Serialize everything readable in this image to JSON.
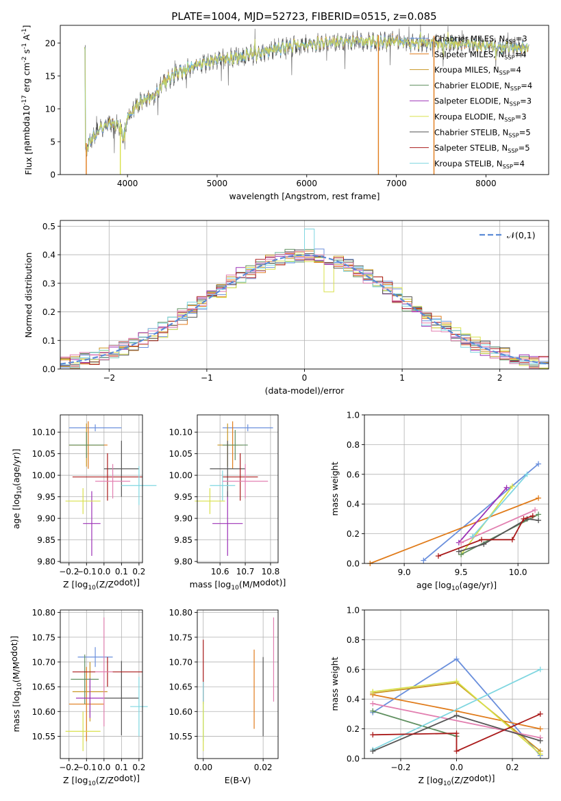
{
  "figure_title": "PLATE=1004, MJD=52723, FIBERID=0515, z=0.085",
  "colors": {
    "Chabrier MILES": "#6a8fdc",
    "Salpeter MILES": "#e07b1a",
    "Kroupa MILES": "#c89622",
    "Chabrier ELODIE": "#5f8f5f",
    "Salpeter ELODIE": "#9b30b6",
    "Kroupa ELODIE": "#d8e04a",
    "Chabrier STELIB": "#555555",
    "Salpeter STELIB": "#aa1a1a",
    "Kroupa STELIB": "#7fd6e0",
    "extra_pink": "#e27fb0",
    "extra_green": "#7fb87f",
    "normal_curve": "#5b8ad6"
  },
  "chart_data": [
    {
      "id": "spectrum",
      "type": "line",
      "xlabel": "wavelength [Angstrom, rest frame]",
      "ylabel": "Flux [f$_\\lambda$10$^{-17}$ erg cm$^{-2}$ s$^{-1}$ A$^{-1}$]",
      "xlim": [
        3250,
        8700
      ],
      "ylim": [
        0,
        22.7
      ],
      "xticks": [
        4000,
        5000,
        6000,
        7000,
        8000
      ],
      "yticks": [
        0,
        5,
        10,
        15,
        20
      ],
      "grid": false,
      "legend_position": "top-right",
      "legend": [
        "Chabrier MILES, N$_{SSP}$=3",
        "Salpeter MILES, N$_{SSP}$=4",
        "Kroupa MILES, N$_{SSP}$=4",
        "Chabrier ELODIE, N$_{SSP}$=4",
        "Salpeter ELODIE, N$_{SSP}$=3",
        "Kroupa ELODIE, N$_{SSP}$=3",
        "Chabrier STELIB, N$_{SSP}$=5",
        "Salpeter STELIB, N$_{SSP}$=5",
        "Kroupa STELIB, N$_{SSP}$=4"
      ],
      "continuum_points": [
        [
          3530,
          3.5
        ],
        [
          3600,
          5.5
        ],
        [
          3700,
          7.0
        ],
        [
          3800,
          8.0
        ],
        [
          3900,
          7.5
        ],
        [
          3950,
          6.0
        ],
        [
          4000,
          8.5
        ],
        [
          4100,
          10.5
        ],
        [
          4200,
          11.5
        ],
        [
          4300,
          12.0
        ],
        [
          4400,
          14.0
        ],
        [
          4600,
          15.8
        ],
        [
          4800,
          16.8
        ],
        [
          5000,
          17.5
        ],
        [
          5200,
          17.8
        ],
        [
          5400,
          18.2
        ],
        [
          5600,
          19.0
        ],
        [
          5800,
          19.5
        ],
        [
          6000,
          19.8
        ],
        [
          6200,
          20.0
        ],
        [
          6400,
          20.2
        ],
        [
          6600,
          20.3
        ],
        [
          6800,
          20.2
        ],
        [
          7000,
          20.3
        ],
        [
          7200,
          20.1
        ],
        [
          7400,
          20.1
        ],
        [
          7600,
          20.0
        ],
        [
          7800,
          19.8
        ],
        [
          8000,
          19.6
        ],
        [
          8200,
          19.4
        ],
        [
          8400,
          19.3
        ],
        [
          8470,
          19.3
        ]
      ],
      "data_range": [
        3520,
        8480
      ],
      "dips_to_zero": [
        [
          3540,
          "#e07b1a"
        ],
        [
          3920,
          "#d8e04a"
        ],
        [
          6800,
          "#e07b1a"
        ],
        [
          7420,
          "#e07b1a"
        ]
      ]
    },
    {
      "id": "residuals",
      "type": "histogram",
      "xlabel": "(data-model)/error",
      "ylabel": "Normed distribution",
      "xlim": [
        -2.5,
        2.5
      ],
      "ylim": [
        0,
        0.52
      ],
      "xticks": [
        -2,
        -1,
        0,
        1,
        2
      ],
      "yticks": [
        0.0,
        0.1,
        0.2,
        0.3,
        0.4,
        0.5
      ],
      "grid": true,
      "legend_position": "top-right",
      "legend": [
        "$\\mathcal{N}(0,1)$"
      ],
      "bin_width": 0.1,
      "series_names": [
        "Chabrier MILES",
        "Salpeter MILES",
        "Kroupa MILES",
        "Chabrier ELODIE",
        "Salpeter ELODIE",
        "Kroupa ELODIE",
        "Chabrier STELIB",
        "Salpeter STELIB",
        "Kroupa STELIB",
        "extra_pink"
      ]
    },
    {
      "id": "age_vs_Z",
      "type": "errorbar",
      "xlabel": "Z [log$_{10}$(Z/Z$_\\odot$)]",
      "ylabel": "age  [log$_{10}$(age/yr)]",
      "xlim": [
        -0.25,
        0.22
      ],
      "ylim": [
        9.797,
        10.14
      ],
      "xticks": [
        -0.2,
        -0.1,
        0.0,
        0.1,
        0.2
      ],
      "yticks": [
        9.8,
        9.85,
        9.9,
        9.95,
        10.0,
        10.05,
        10.1
      ],
      "grid": true,
      "points": [
        {
          "series": "Chabrier MILES",
          "x": -0.05,
          "xerr": 0.15,
          "y": 10.11,
          "yerr": 0.008
        },
        {
          "series": "Salpeter MILES",
          "x": -0.09,
          "xerr": 0.11,
          "y": 10.07,
          "yerr": 0.055
        },
        {
          "series": "Kroupa MILES",
          "x": -0.1,
          "xerr": 0.1,
          "y": 10.07,
          "yerr": 0.05
        },
        {
          "series": "Chabrier ELODIE",
          "x": -0.1,
          "xerr": 0.1,
          "y": 10.07,
          "yerr": 0.03
        },
        {
          "series": "Salpeter ELODIE",
          "x": -0.07,
          "xerr": 0.05,
          "y": 9.888,
          "yerr": 0.075
        },
        {
          "series": "Kroupa ELODIE",
          "x": -0.12,
          "xerr": 0.1,
          "y": 9.94,
          "yerr": 0.03
        },
        {
          "series": "Chabrier STELIB",
          "x": 0.1,
          "xerr": 0.1,
          "y": 10.015,
          "yerr": 0.065
        },
        {
          "series": "Salpeter STELIB",
          "x": 0.02,
          "xerr": 0.2,
          "y": 9.996,
          "yerr": 0.055
        },
        {
          "series": "Kroupa STELIB",
          "x": 0.2,
          "xerr": 0.1,
          "y": 9.976,
          "yerr": 0.045
        },
        {
          "series": "extra_pink",
          "x": 0.05,
          "xerr": 0.1,
          "y": 9.986,
          "yerr": 0.04
        }
      ]
    },
    {
      "id": "age_vs_mass",
      "type": "errorbar",
      "xlabel": "mass [log$_{10}$(M/M$_\\odot$)]",
      "ylabel": "",
      "xlim": [
        10.51,
        10.83
      ],
      "ylim": [
        9.797,
        10.14
      ],
      "xticks": [
        10.6,
        10.7,
        10.8
      ],
      "yticks": [
        9.8,
        9.85,
        9.9,
        9.95,
        10.0,
        10.05,
        10.1
      ],
      "grid": true,
      "points": [
        {
          "series": "Chabrier MILES",
          "x": 10.71,
          "xerr": 0.1,
          "y": 10.11,
          "yerr": 0.008
        },
        {
          "series": "Salpeter MILES",
          "x": 10.65,
          "xerr": 0.04,
          "y": 10.07,
          "yerr": 0.055
        },
        {
          "series": "Kroupa MILES",
          "x": 10.63,
          "xerr": 0.04,
          "y": 10.07,
          "yerr": 0.05
        },
        {
          "series": "Chabrier ELODIE",
          "x": 10.66,
          "xerr": 0.05,
          "y": 10.07,
          "yerr": 0.035
        },
        {
          "series": "Salpeter ELODIE",
          "x": 10.63,
          "xerr": 0.06,
          "y": 9.888,
          "yerr": 0.075
        },
        {
          "series": "Kroupa ELODIE",
          "x": 10.56,
          "xerr": 0.06,
          "y": 9.94,
          "yerr": 0.03
        },
        {
          "series": "Chabrier STELIB",
          "x": 10.63,
          "xerr": 0.07,
          "y": 10.015,
          "yerr": 0.065
        },
        {
          "series": "Salpeter STELIB",
          "x": 10.68,
          "xerr": 0.07,
          "y": 9.996,
          "yerr": 0.055
        },
        {
          "series": "Kroupa STELIB",
          "x": 10.61,
          "xerr": 0.05,
          "y": 9.976,
          "yerr": 0.035
        },
        {
          "series": "extra_pink",
          "x": 10.7,
          "xerr": 0.09,
          "y": 9.986,
          "yerr": 0.04
        }
      ]
    },
    {
      "id": "weight_vs_age",
      "type": "line",
      "xlabel": "age  [log$_{10}$(age/yr)]",
      "ylabel": "mass weight",
      "xlim": [
        8.65,
        10.27
      ],
      "ylim": [
        0,
        1.0
      ],
      "xticks": [
        9.0,
        9.5,
        10.0
      ],
      "yticks": [
        0.0,
        0.2,
        0.4,
        0.6,
        0.8,
        1.0
      ],
      "grid": true,
      "series": [
        {
          "name": "Chabrier MILES",
          "x": [
            9.17,
            10.18
          ],
          "y": [
            0.02,
            0.67
          ]
        },
        {
          "name": "Salpeter MILES",
          "x": [
            8.7,
            10.18
          ],
          "y": [
            0.0,
            0.44
          ]
        },
        {
          "name": "Kroupa ELODIE",
          "x": [
            9.5,
            9.95
          ],
          "y": [
            0.06,
            0.52
          ]
        },
        {
          "name": "Salpeter ELODIE",
          "x": [
            9.48,
            9.9
          ],
          "y": [
            0.14,
            0.51
          ]
        },
        {
          "name": "extra_pink",
          "x": [
            9.5,
            10.15
          ],
          "y": [
            0.14,
            0.36
          ]
        },
        {
          "name": "Kroupa STELIB",
          "x": [
            9.6,
            10.08
          ],
          "y": [
            0.18,
            0.6
          ]
        },
        {
          "name": "Chabrier ELODIE",
          "x": [
            9.5,
            10.18
          ],
          "y": [
            0.06,
            0.33
          ]
        },
        {
          "name": "Chabrier STELIB",
          "x": [
            9.48,
            9.7,
            10.08,
            10.18
          ],
          "y": [
            0.08,
            0.13,
            0.3,
            0.29
          ]
        },
        {
          "name": "Salpeter STELIB",
          "x": [
            9.3,
            9.68,
            9.95,
            10.05,
            10.13
          ],
          "y": [
            0.05,
            0.16,
            0.16,
            0.3,
            0.32
          ]
        }
      ]
    },
    {
      "id": "mass_vs_Z",
      "type": "errorbar",
      "xlabel": "Z [log$_{10}$(Z/Z$_\\odot$)]",
      "ylabel": "mass [log$_{10}$(M/M$_\\odot$)]",
      "xlim": [
        -0.25,
        0.22
      ],
      "ylim": [
        10.505,
        10.805
      ],
      "xticks": [
        -0.2,
        -0.1,
        0.0,
        0.1,
        0.2
      ],
      "yticks": [
        10.55,
        10.6,
        10.65,
        10.7,
        10.75,
        10.8
      ],
      "grid": true,
      "points": [
        {
          "series": "Chabrier MILES",
          "x": -0.05,
          "xerr": 0.1,
          "y": 10.71,
          "yerr": 0.02
        },
        {
          "series": "Salpeter MILES",
          "x": -0.1,
          "xerr": 0.1,
          "y": 10.615,
          "yerr": 0.075
        },
        {
          "series": "Kroupa MILES",
          "x": -0.08,
          "xerr": 0.1,
          "y": 10.64,
          "yerr": 0.06
        },
        {
          "series": "Chabrier ELODIE",
          "x": -0.11,
          "xerr": 0.08,
          "y": 10.665,
          "yerr": 0.05
        },
        {
          "series": "Salpeter ELODIE",
          "x": -0.08,
          "xerr": 0.08,
          "y": 10.627,
          "yerr": 0.04
        },
        {
          "series": "Kroupa ELODIE",
          "x": -0.12,
          "xerr": 0.1,
          "y": 10.56,
          "yerr": 0.04
        },
        {
          "series": "Chabrier STELIB",
          "x": 0.1,
          "xerr": 0.1,
          "y": 10.627,
          "yerr": 0.075
        },
        {
          "series": "Salpeter STELIB",
          "x": 0.02,
          "xerr": 0.2,
          "y": 10.68,
          "yerr": 0.03
        },
        {
          "series": "Kroupa STELIB",
          "x": 0.2,
          "xerr": 0.05,
          "y": 10.61,
          "yerr": 0.06
        },
        {
          "series": "extra_pink",
          "x": 0.0,
          "xerr": 0.05,
          "y": 10.68,
          "yerr": 0.11
        }
      ]
    },
    {
      "id": "mass_vs_ebv",
      "type": "errorbar",
      "xlabel": "E(B-V)",
      "ylabel": "",
      "xlim": [
        -0.002,
        0.025
      ],
      "ylim": [
        10.505,
        10.805
      ],
      "xticks": [
        0.0,
        0.02
      ],
      "yticks": [
        10.55,
        10.6,
        10.65,
        10.7,
        10.75,
        10.8
      ],
      "grid": true,
      "points": [
        {
          "series": "Salpeter STELIB",
          "x": 0.0,
          "xerr": 0,
          "y": 10.68,
          "yerr": 0.065
        },
        {
          "series": "Kroupa STELIB",
          "x": 0.0,
          "xerr": 0,
          "y": 10.6,
          "yerr": 0.06
        },
        {
          "series": "Kroupa ELODIE",
          "x": 0.0,
          "xerr": 0,
          "y": 10.57,
          "yerr": 0.05
        },
        {
          "series": "Salpeter MILES",
          "x": 0.017,
          "xerr": 0,
          "y": 10.645,
          "yerr": 0.08
        },
        {
          "series": "Chabrier STELIB",
          "x": 0.02,
          "xerr": 0,
          "y": 10.63,
          "yerr": 0.08
        },
        {
          "series": "extra_pink",
          "x": 0.0235,
          "xerr": 0,
          "y": 10.705,
          "yerr": 0.085
        }
      ]
    },
    {
      "id": "weight_vs_Z",
      "type": "line",
      "xlabel": "Z [log$_{10}$(Z/Z$_\\odot$)]",
      "ylabel": "mass weight",
      "xlim": [
        -0.33,
        0.33
      ],
      "ylim": [
        0,
        1.0
      ],
      "xticks": [
        -0.2,
        0.0,
        0.2
      ],
      "yticks": [
        0.0,
        0.2,
        0.4,
        0.6,
        0.8,
        1.0
      ],
      "grid": true,
      "series": [
        {
          "name": "Chabrier MILES",
          "x": [
            -0.3,
            0.0,
            0.3
          ],
          "y": [
            0.31,
            0.67,
            0.02
          ]
        },
        {
          "name": "Salpeter MILES",
          "x": [
            -0.3,
            0.0,
            0.3
          ],
          "y": [
            0.43,
            0.32,
            0.2
          ]
        },
        {
          "name": "Kroupa MILES",
          "x": [
            -0.3,
            0.0,
            0.3
          ],
          "y": [
            0.44,
            0.51,
            0.05
          ]
        },
        {
          "name": "Kroupa ELODIE",
          "x": [
            -0.3,
            0.0,
            0.3
          ],
          "y": [
            0.45,
            0.52,
            0.03
          ]
        },
        {
          "name": "extra_pink",
          "x": [
            -0.3,
            0.3
          ],
          "y": [
            0.37,
            0.14
          ]
        },
        {
          "name": "Chabrier ELODIE",
          "x": [
            -0.3,
            0.0
          ],
          "y": [
            0.32,
            0.15
          ]
        },
        {
          "name": "Kroupa STELIB",
          "x": [
            -0.3,
            0.3
          ],
          "y": [
            0.06,
            0.6
          ]
        },
        {
          "name": "Chabrier STELIB",
          "x": [
            -0.3,
            0.0,
            0.3
          ],
          "y": [
            0.05,
            0.29,
            0.12
          ]
        },
        {
          "name": "Salpeter STELIB",
          "x": [
            -0.3,
            0.0,
            0.0,
            0.3
          ],
          "y": [
            0.16,
            0.17,
            0.05,
            0.3
          ]
        }
      ]
    }
  ]
}
